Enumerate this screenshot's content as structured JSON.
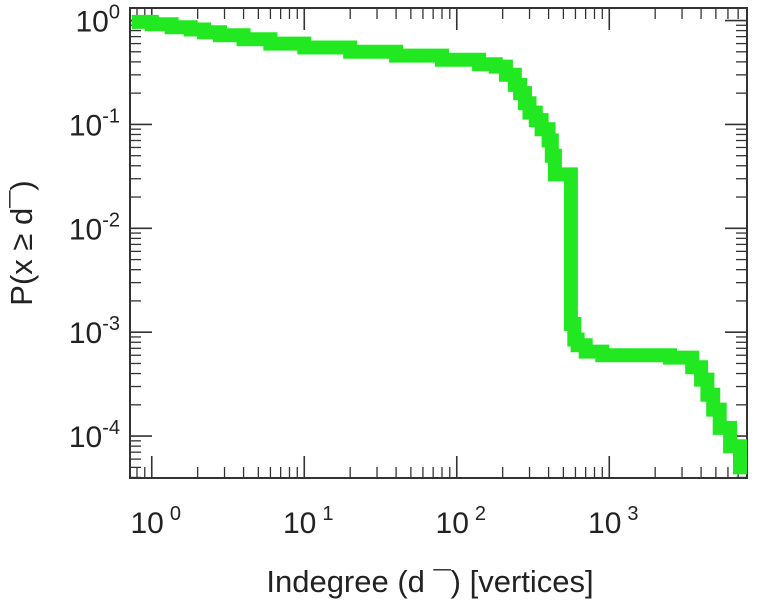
{
  "chart_data": {
    "type": "line",
    "step": true,
    "xscale": "log",
    "yscale": "log",
    "xlim": [
      0.72,
      8000
    ],
    "ylim": [
      3.95e-05,
      1.32
    ],
    "xlabel": "Indegree (d ¯) [vertices]",
    "ylabel": "P(x ≥ d¯)",
    "xticks": [
      {
        "value": 1,
        "base": "10",
        "exp": "0"
      },
      {
        "value": 10,
        "base": "10",
        "exp": "1"
      },
      {
        "value": 100,
        "base": "10",
        "exp": "2"
      },
      {
        "value": 1000,
        "base": "10",
        "exp": "3"
      }
    ],
    "yticks": [
      {
        "value": 1,
        "base": "10",
        "exp": "0"
      },
      {
        "value": 0.1,
        "base": "10",
        "exp": "-1"
      },
      {
        "value": 0.01,
        "base": "10",
        "exp": "-2"
      },
      {
        "value": 0.001,
        "base": "10",
        "exp": "-3"
      },
      {
        "value": 0.0001,
        "base": "10",
        "exp": "-4"
      }
    ],
    "grid": false,
    "series": [
      {
        "color": "#22e822",
        "x": [
          0.74,
          1,
          1.35,
          1.8,
          2.2,
          2.8,
          4,
          6,
          10,
          20,
          40,
          80,
          140,
          180,
          210,
          240,
          260,
          280,
          300,
          330,
          360,
          400,
          420,
          440,
          480,
          500,
          540,
          560,
          590,
          620,
          700,
          900,
          1500,
          2500,
          3500,
          4000,
          4400,
          4800,
          5300,
          6200,
          7200
        ],
        "y": [
          0.97,
          0.92,
          0.86,
          0.82,
          0.77,
          0.72,
          0.66,
          0.6,
          0.55,
          0.5,
          0.46,
          0.42,
          0.38,
          0.36,
          0.3,
          0.24,
          0.2,
          0.16,
          0.13,
          0.11,
          0.09,
          0.07,
          0.05,
          0.033,
          0.033,
          0.033,
          0.033,
          0.0012,
          0.00085,
          0.00075,
          0.00065,
          0.0006,
          0.0006,
          0.00057,
          0.00046,
          0.00035,
          0.00025,
          0.00018,
          0.00012,
          8e-05,
          5e-05
        ]
      }
    ]
  }
}
